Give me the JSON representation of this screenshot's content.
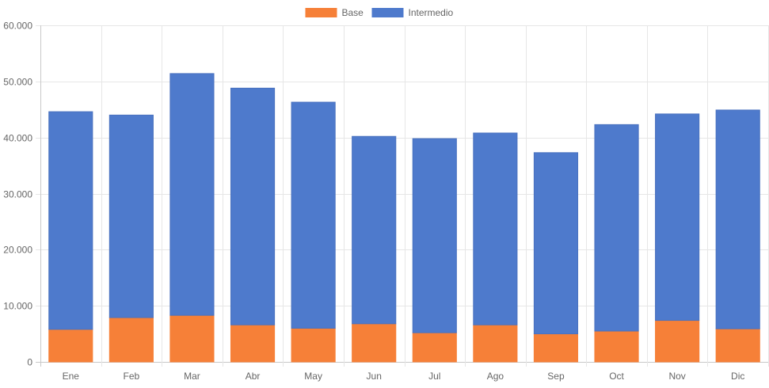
{
  "chart_data": {
    "type": "bar",
    "stacked": true,
    "categories": [
      "Ene",
      "Feb",
      "Mar",
      "Abr",
      "May",
      "Jun",
      "Jul",
      "Ago",
      "Sep",
      "Oct",
      "Nov",
      "Dic"
    ],
    "series": [
      {
        "name": "Base",
        "color": "#f68038",
        "values": [
          5800,
          7900,
          8300,
          6600,
          6000,
          6800,
          5200,
          6600,
          5000,
          5500,
          7400,
          5900
        ]
      },
      {
        "name": "Intermedio",
        "color": "#4e7acc",
        "values": [
          38800,
          36100,
          43100,
          42200,
          40300,
          33400,
          34600,
          34200,
          32300,
          36800,
          36800,
          39000
        ]
      }
    ],
    "y_ticks": [
      "0",
      "10.000",
      "20.000",
      "30.000",
      "40.000",
      "50.000",
      "60.000"
    ],
    "ylim": [
      0,
      60000
    ],
    "legend_position": "top-center",
    "grid": true
  }
}
